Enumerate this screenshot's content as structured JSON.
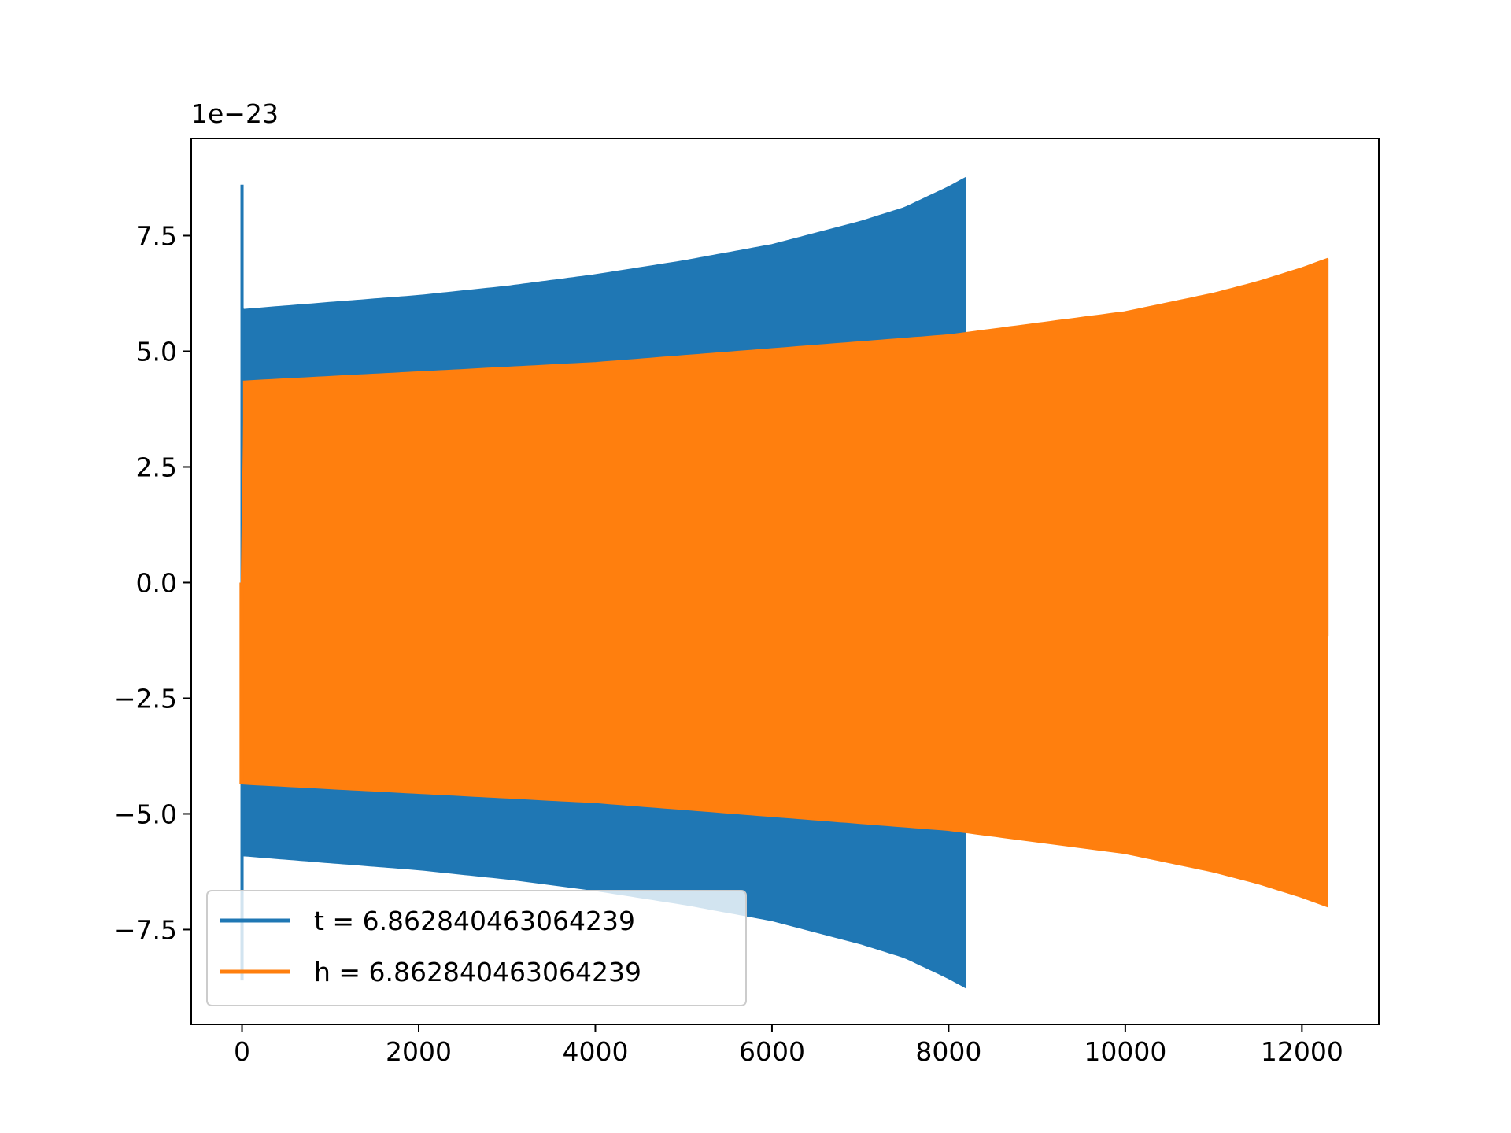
{
  "chart_data": {
    "type": "line",
    "title": "",
    "xlabel": "",
    "ylabel": "",
    "y_offset_text": "1e−23",
    "xlim": [
      -575,
      12870
    ],
    "ylim": [
      -9.55,
      9.6
    ],
    "x_ticks": [
      0,
      2000,
      4000,
      6000,
      8000,
      10000,
      12000
    ],
    "x_tick_labels": [
      "0",
      "2000",
      "4000",
      "6000",
      "8000",
      "10000",
      "12000"
    ],
    "y_ticks": [
      -7.5,
      -5.0,
      -2.5,
      0.0,
      2.5,
      5.0,
      7.5
    ],
    "y_tick_labels": [
      "−7.5",
      "−5.0",
      "−2.5",
      "0.0",
      "2.5",
      "5.0",
      "7.5"
    ],
    "grid": false,
    "legend_position": "lower-left",
    "series": [
      {
        "name": "t = 6.862840463064239",
        "color": "#1f77b4",
        "x_start": 0,
        "x_end": 8192,
        "initial_spike": 8.6,
        "envelope_x": [
          20,
          1000,
          2000,
          3000,
          4000,
          5000,
          6000,
          7000,
          7500,
          8000,
          8192
        ],
        "envelope_amplitude": [
          5.9,
          6.05,
          6.2,
          6.4,
          6.65,
          6.95,
          7.3,
          7.8,
          8.1,
          8.55,
          8.75
        ]
      },
      {
        "name": "h = 6.862840463064239",
        "color": "#ff7f0e",
        "x_start": 0,
        "x_end": 12288,
        "envelope_x": [
          20,
          1000,
          2000,
          3000,
          4000,
          5000,
          6000,
          7000,
          8000,
          9000,
          10000,
          11000,
          11500,
          12000,
          12288
        ],
        "envelope_amplitude": [
          4.35,
          4.45,
          4.55,
          4.65,
          4.75,
          4.9,
          5.05,
          5.2,
          5.35,
          5.6,
          5.85,
          6.25,
          6.5,
          6.8,
          7.0
        ],
        "end_value": -1.15
      }
    ]
  }
}
